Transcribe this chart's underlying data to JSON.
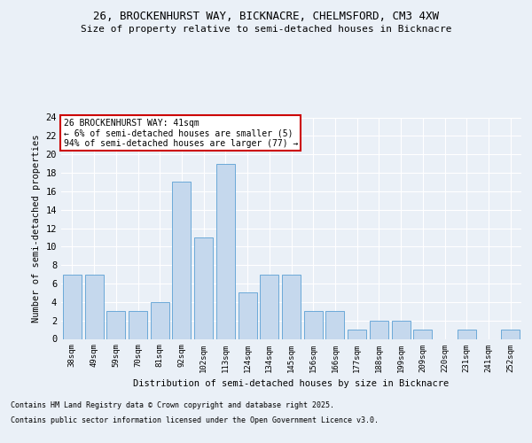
{
  "title_line1": "26, BROCKENHURST WAY, BICKNACRE, CHELMSFORD, CM3 4XW",
  "title_line2": "Size of property relative to semi-detached houses in Bicknacre",
  "xlabel": "Distribution of semi-detached houses by size in Bicknacre",
  "ylabel": "Number of semi-detached properties",
  "categories": [
    "38sqm",
    "49sqm",
    "59sqm",
    "70sqm",
    "81sqm",
    "92sqm",
    "102sqm",
    "113sqm",
    "124sqm",
    "134sqm",
    "145sqm",
    "156sqm",
    "166sqm",
    "177sqm",
    "188sqm",
    "199sqm",
    "209sqm",
    "220sqm",
    "231sqm",
    "241sqm",
    "252sqm"
  ],
  "values": [
    7,
    7,
    3,
    3,
    4,
    17,
    11,
    19,
    5,
    7,
    7,
    3,
    3,
    1,
    2,
    2,
    1,
    0,
    1,
    0,
    1
  ],
  "bar_color": "#c5d8ed",
  "bar_edge_color": "#5a9fd4",
  "annotation_title": "26 BROCKENHURST WAY: 41sqm",
  "annotation_line1": "← 6% of semi-detached houses are smaller (5)",
  "annotation_line2": "94% of semi-detached houses are larger (77) →",
  "annotation_box_color": "#ffffff",
  "annotation_box_edge_color": "#cc0000",
  "footer_line1": "Contains HM Land Registry data © Crown copyright and database right 2025.",
  "footer_line2": "Contains public sector information licensed under the Open Government Licence v3.0.",
  "bg_color": "#eaf0f7",
  "plot_bg_color": "#eaf0f7",
  "grid_color": "#ffffff",
  "ylim": [
    0,
    24
  ],
  "yticks": [
    0,
    2,
    4,
    6,
    8,
    10,
    12,
    14,
    16,
    18,
    20,
    22,
    24
  ]
}
